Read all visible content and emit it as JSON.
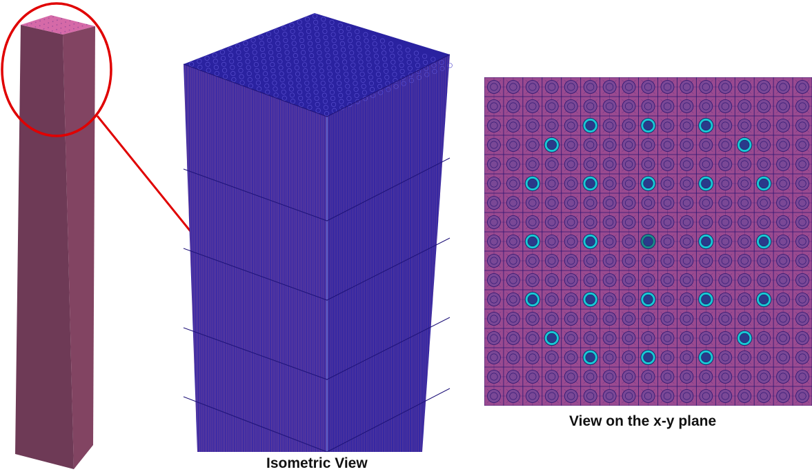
{
  "captions": {
    "isometric": "Isometric View",
    "xy_plane": "View on the x-y plane"
  },
  "assembly": {
    "lattice_size": 17,
    "guide_tube_positions": [
      [
        2,
        5
      ],
      [
        2,
        8
      ],
      [
        2,
        11
      ],
      [
        3,
        3
      ],
      [
        3,
        13
      ],
      [
        5,
        2
      ],
      [
        5,
        5
      ],
      [
        5,
        8
      ],
      [
        5,
        11
      ],
      [
        5,
        14
      ],
      [
        8,
        2
      ],
      [
        8,
        5
      ],
      [
        8,
        11
      ],
      [
        8,
        14
      ],
      [
        11,
        2
      ],
      [
        11,
        5
      ],
      [
        11,
        8
      ],
      [
        11,
        11
      ],
      [
        11,
        14
      ],
      [
        13,
        3
      ],
      [
        13,
        13
      ],
      [
        14,
        5
      ],
      [
        14,
        8
      ],
      [
        14,
        11
      ]
    ],
    "instrument_tube_position": [
      8,
      8
    ]
  },
  "colors": {
    "rod_face_left": "#6e3a56",
    "rod_face_right": "#824462",
    "rod_top": "#d56aa8",
    "highlight_circle": "#e00000",
    "mesh_top": "#2a22a0",
    "mesh_face_left": "#3a2aa6",
    "mesh_face_right": "#3226a4",
    "mesh_stripe": "#c07080",
    "section_bg": "#9a4a90",
    "mesh_line": "#2a1670",
    "fuel_pin": "#7a4896",
    "guide_tube": "#18c8d4",
    "instrument_tube": "#1a8a8a"
  }
}
